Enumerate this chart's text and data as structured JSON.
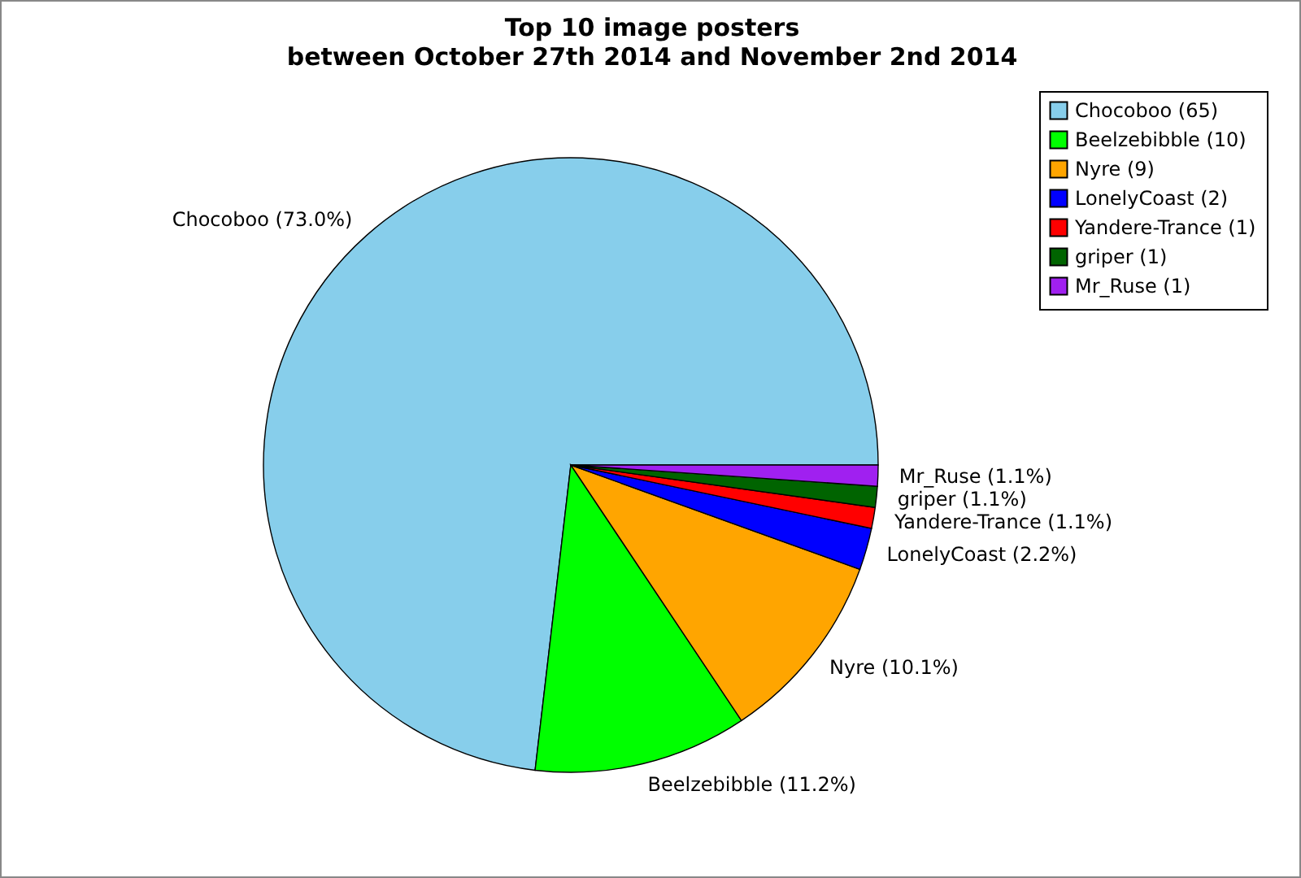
{
  "chart_data": {
    "type": "pie",
    "title": "Top 10 image posters\nbetween October 27th 2014 and November 2nd 2014",
    "categories": [
      "Chocoboo (65)",
      "Beelzebibble (10)",
      "Nyre (9)",
      "LonelyCoast (2)",
      "Yandere-Trance (1)",
      "griper (1)",
      "Mr_Ruse (1)"
    ],
    "values": [
      73.0,
      11.2,
      10.1,
      2.2,
      1.1,
      1.1,
      1.1
    ],
    "value_labels": [
      "Chocoboo (73.0%)",
      "Beelzebibble (11.2%)",
      "Nyre (10.1%)",
      "LonelyCoast (2.2%)",
      "Yandere-Trance (1.1%)",
      "griper (1.1%)",
      "Mr_Ruse (1.1%)"
    ],
    "colors": [
      "#87ceeb",
      "#00ff00",
      "#ffa500",
      "#0000ff",
      "#ff0000",
      "#006400",
      "#a020f0"
    ],
    "legend": "top right"
  }
}
